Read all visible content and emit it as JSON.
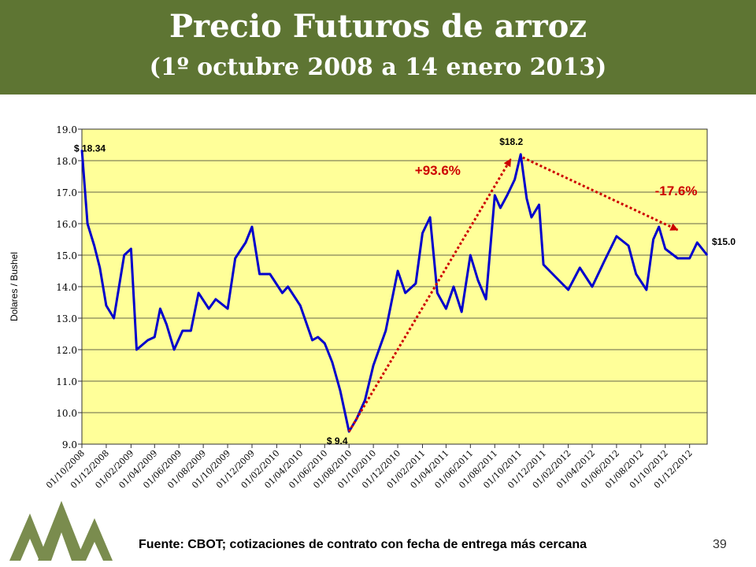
{
  "header": {
    "title": "Precio Futuros de arroz",
    "subtitle": "(1º octubre 2008 a 14 enero 2013)"
  },
  "footer": {
    "source": "Fuente: CBOT; cotizaciones de contrato con fecha de entrega más cercana",
    "page_number": "39"
  },
  "colors": {
    "banner": "#5e7533",
    "plot_background": "#ffff99",
    "series": "#0000cc",
    "annotation": "#cc0000",
    "logo": "#7a8c4e"
  },
  "chart_data": {
    "type": "line",
    "xlabel": "",
    "ylabel": "Dolares / Bushel",
    "ylim": [
      9.0,
      19.0
    ],
    "y_ticks": [
      "9.0",
      "10.0",
      "11.0",
      "12.0",
      "13.0",
      "14.0",
      "15.0",
      "16.0",
      "17.0",
      "18.0",
      "19.0"
    ],
    "x_range": [
      "01/10/2008",
      "14/01/2013"
    ],
    "x_ticks": [
      "01/10/2008",
      "01/12/2008",
      "01/02/2009",
      "01/04/2009",
      "01/06/2009",
      "01/08/2009",
      "01/10/2009",
      "01/12/2009",
      "01/02/2010",
      "01/04/2010",
      "01/06/2010",
      "01/08/2010",
      "01/10/2010",
      "01/12/2010",
      "01/02/2011",
      "01/04/2011",
      "01/06/2011",
      "01/08/2011",
      "01/10/2011",
      "01/12/2011",
      "01/02/2012",
      "01/04/2012",
      "01/06/2012",
      "01/08/2012",
      "01/10/2012",
      "01/12/2012"
    ],
    "grid": "horizontal",
    "legend": "none",
    "series": [
      {
        "x": [
          "01/10/2008",
          "15/10/2008",
          "01/11/2008",
          "15/11/2008",
          "01/12/2008",
          "20/12/2008",
          "15/01/2009",
          "01/02/2009",
          "15/02/2009",
          "15/03/2009",
          "01/04/2009",
          "15/04/2009",
          "01/05/2009",
          "20/05/2009",
          "10/06/2009",
          "01/07/2009",
          "20/07/2009",
          "15/08/2009",
          "01/09/2009",
          "01/10/2009",
          "20/10/2009",
          "15/11/2009",
          "01/12/2009",
          "20/12/2009",
          "15/01/2010",
          "15/02/2010",
          "01/03/2010",
          "01/04/2010",
          "01/05/2010",
          "15/05/2010",
          "01/06/2010",
          "20/06/2010",
          "10/07/2010",
          "01/08/2010",
          "20/08/2010",
          "10/09/2010",
          "01/10/2010",
          "01/11/2010",
          "01/12/2010",
          "20/12/2010",
          "15/01/2011",
          "01/02/2011",
          "20/02/2011",
          "10/03/2011",
          "01/04/2011",
          "20/04/2011",
          "10/05/2011",
          "01/06/2011",
          "20/06/2011",
          "10/07/2011",
          "01/08/2011",
          "15/08/2011",
          "01/09/2011",
          "20/09/2011",
          "05/10/2011",
          "20/10/2011",
          "01/11/2011",
          "20/11/2011",
          "01/12/2011",
          "01/01/2012",
          "01/02/2012",
          "01/03/2012",
          "01/04/2012",
          "01/05/2012",
          "01/06/2012",
          "01/07/2012",
          "20/07/2012",
          "15/08/2012",
          "01/09/2012",
          "15/09/2012",
          "01/10/2012",
          "01/11/2012",
          "01/12/2012",
          "20/12/2012",
          "14/01/2013"
        ],
        "y": [
          18.34,
          16.0,
          15.3,
          14.6,
          13.4,
          13.0,
          15.0,
          15.2,
          12.0,
          12.3,
          12.4,
          13.3,
          12.8,
          12.0,
          12.6,
          12.6,
          13.8,
          13.3,
          13.6,
          13.3,
          14.9,
          15.4,
          15.9,
          14.4,
          14.4,
          13.8,
          14.0,
          13.4,
          12.3,
          12.4,
          12.2,
          11.6,
          10.7,
          9.4,
          9.8,
          10.4,
          11.5,
          12.6,
          14.5,
          13.8,
          14.1,
          15.7,
          16.2,
          13.8,
          13.3,
          14.0,
          13.2,
          15.0,
          14.2,
          13.6,
          16.9,
          16.5,
          16.9,
          17.4,
          18.2,
          16.8,
          16.2,
          16.6,
          14.7,
          14.3,
          13.9,
          14.6,
          14.0,
          14.8,
          15.6,
          15.3,
          14.4,
          13.9,
          15.5,
          15.9,
          15.2,
          14.9,
          14.9,
          15.4,
          15.0
        ]
      }
    ],
    "annotations": [
      {
        "text": "$ 18.34",
        "x": "01/10/2008",
        "y": 18.34
      },
      {
        "text": "$18.2",
        "x": "05/10/2011",
        "y": 18.2
      },
      {
        "text": "$ 9.4",
        "x": "01/08/2010",
        "y": 9.4
      },
      {
        "text": "$15.0",
        "x": "14/01/2013",
        "y": 15.0
      },
      {
        "text": "+93.6%",
        "from": [
          "01/08/2010",
          9.4
        ],
        "to": [
          "10/09/2011",
          18.05
        ]
      },
      {
        "text": "-17.6%",
        "from": [
          "10/10/2011",
          18.1
        ],
        "to": [
          "01/11/2012",
          15.8
        ]
      }
    ]
  }
}
